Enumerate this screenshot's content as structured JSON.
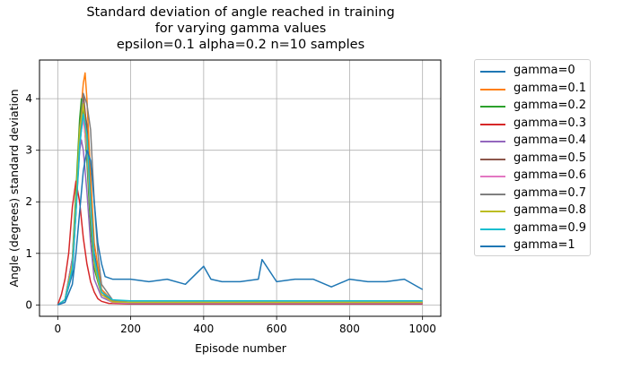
{
  "chart_data": {
    "type": "line",
    "title_lines": [
      "Standard deviation of angle reached in training",
      "for varying gamma values",
      "epsilon=0.1 alpha=0.2 n=10 samples"
    ],
    "xlabel": "Episode number",
    "ylabel": "Angle (degrees) standard deviation",
    "xlim": [
      -50,
      1050
    ],
    "ylim": [
      -0.22,
      4.75
    ],
    "xticks": [
      0,
      200,
      400,
      600,
      800,
      1000
    ],
    "xtick_labels": [
      "0",
      "200",
      "400",
      "600",
      "800",
      "1000"
    ],
    "yticks": [
      0,
      1,
      2,
      3,
      4
    ],
    "ytick_labels": [
      "0",
      "1",
      "2",
      "3",
      "4"
    ],
    "grid": true,
    "legend_position": "outside-right",
    "series": [
      {
        "name": "gamma=0",
        "color": "#1f77b4",
        "x": [
          0,
          20,
          40,
          50,
          60,
          70,
          80,
          90,
          100,
          120,
          150,
          200,
          400,
          600,
          800,
          1000
        ],
        "y": [
          0,
          0.1,
          0.6,
          1.8,
          3.0,
          3.9,
          3.5,
          2.2,
          1.0,
          0.3,
          0.08,
          0.05,
          0.05,
          0.05,
          0.05,
          0.05
        ]
      },
      {
        "name": "gamma=0.1",
        "color": "#ff7f0e",
        "x": [
          0,
          20,
          40,
          50,
          60,
          70,
          75,
          80,
          90,
          100,
          120,
          150,
          200,
          400,
          600,
          800,
          1000
        ],
        "y": [
          0,
          0.1,
          0.8,
          2.0,
          3.5,
          4.3,
          4.5,
          4.0,
          2.5,
          1.2,
          0.3,
          0.08,
          0.04,
          0.04,
          0.04,
          0.04,
          0.04
        ]
      },
      {
        "name": "gamma=0.2",
        "color": "#2ca02c",
        "x": [
          0,
          20,
          40,
          50,
          60,
          65,
          70,
          80,
          90,
          100,
          120,
          150,
          200,
          400,
          600,
          800,
          1000
        ],
        "y": [
          0,
          0.1,
          0.9,
          2.2,
          3.6,
          4.0,
          3.8,
          2.8,
          1.5,
          0.7,
          0.2,
          0.06,
          0.04,
          0.04,
          0.04,
          0.04,
          0.04
        ]
      },
      {
        "name": "gamma=0.3",
        "color": "#d62728",
        "x": [
          0,
          10,
          20,
          30,
          40,
          50,
          60,
          70,
          80,
          90,
          100,
          110,
          120,
          140,
          200,
          400,
          600,
          800,
          1000
        ],
        "y": [
          0,
          0.2,
          0.5,
          1.0,
          1.9,
          2.4,
          2.0,
          1.3,
          0.8,
          0.45,
          0.25,
          0.12,
          0.07,
          0.03,
          0.02,
          0.02,
          0.02,
          0.02,
          0.02
        ]
      },
      {
        "name": "gamma=0.4",
        "color": "#9467bd",
        "x": [
          0,
          20,
          40,
          50,
          60,
          65,
          70,
          80,
          90,
          100,
          120,
          150,
          200,
          400,
          600,
          800,
          1000
        ],
        "y": [
          0,
          0.1,
          0.9,
          2.0,
          3.0,
          3.2,
          3.0,
          2.2,
          1.2,
          0.5,
          0.15,
          0.05,
          0.03,
          0.03,
          0.03,
          0.03,
          0.03
        ]
      },
      {
        "name": "gamma=0.5",
        "color": "#8c564b",
        "x": [
          0,
          20,
          40,
          50,
          60,
          70,
          80,
          90,
          100,
          120,
          150,
          200,
          400,
          600,
          800,
          1000
        ],
        "y": [
          0,
          0.1,
          0.8,
          1.9,
          3.4,
          4.1,
          3.4,
          2.0,
          0.9,
          0.25,
          0.06,
          0.04,
          0.04,
          0.04,
          0.04,
          0.04
        ]
      },
      {
        "name": "gamma=0.6",
        "color": "#e377c2",
        "x": [
          0,
          20,
          40,
          50,
          60,
          70,
          80,
          90,
          100,
          120,
          150,
          200,
          400,
          600,
          800,
          1000
        ],
        "y": [
          0,
          0.1,
          0.8,
          1.9,
          3.2,
          3.6,
          3.0,
          1.8,
          0.8,
          0.2,
          0.05,
          0.04,
          0.04,
          0.04,
          0.04,
          0.04
        ]
      },
      {
        "name": "gamma=0.7",
        "color": "#7f7f7f",
        "x": [
          0,
          20,
          40,
          50,
          60,
          70,
          80,
          90,
          100,
          110,
          120,
          150,
          200,
          400,
          600,
          800,
          1000
        ],
        "y": [
          0,
          0.1,
          0.7,
          1.8,
          3.2,
          4.1,
          3.9,
          3.4,
          2.0,
          1.0,
          0.4,
          0.1,
          0.05,
          0.05,
          0.05,
          0.05,
          0.05
        ]
      },
      {
        "name": "gamma=0.8",
        "color": "#bcbd22",
        "x": [
          0,
          20,
          40,
          50,
          60,
          70,
          80,
          90,
          100,
          120,
          150,
          200,
          400,
          600,
          800,
          1000
        ],
        "y": [
          0,
          0.1,
          0.8,
          2.0,
          3.4,
          3.9,
          3.1,
          1.9,
          0.8,
          0.2,
          0.06,
          0.05,
          0.05,
          0.05,
          0.05,
          0.05
        ]
      },
      {
        "name": "gamma=0.9",
        "color": "#17becf",
        "x": [
          0,
          20,
          40,
          50,
          60,
          70,
          80,
          90,
          100,
          120,
          150,
          200,
          400,
          600,
          800,
          1000
        ],
        "y": [
          0,
          0.1,
          0.7,
          1.8,
          3.1,
          3.7,
          3.3,
          2.0,
          0.9,
          0.25,
          0.1,
          0.08,
          0.08,
          0.08,
          0.08,
          0.08
        ]
      },
      {
        "name": "gamma=1",
        "color": "#1f77b4",
        "x": [
          0,
          20,
          40,
          50,
          60,
          70,
          80,
          90,
          100,
          110,
          120,
          130,
          150,
          200,
          250,
          300,
          350,
          400,
          420,
          450,
          500,
          550,
          560,
          600,
          650,
          700,
          750,
          800,
          850,
          900,
          950,
          1000
        ],
        "y": [
          0,
          0.05,
          0.4,
          1.0,
          1.8,
          2.6,
          3.0,
          2.8,
          2.0,
          1.2,
          0.8,
          0.55,
          0.5,
          0.5,
          0.45,
          0.5,
          0.4,
          0.75,
          0.5,
          0.45,
          0.45,
          0.5,
          0.88,
          0.45,
          0.5,
          0.5,
          0.35,
          0.5,
          0.45,
          0.45,
          0.5,
          0.3
        ]
      }
    ]
  }
}
